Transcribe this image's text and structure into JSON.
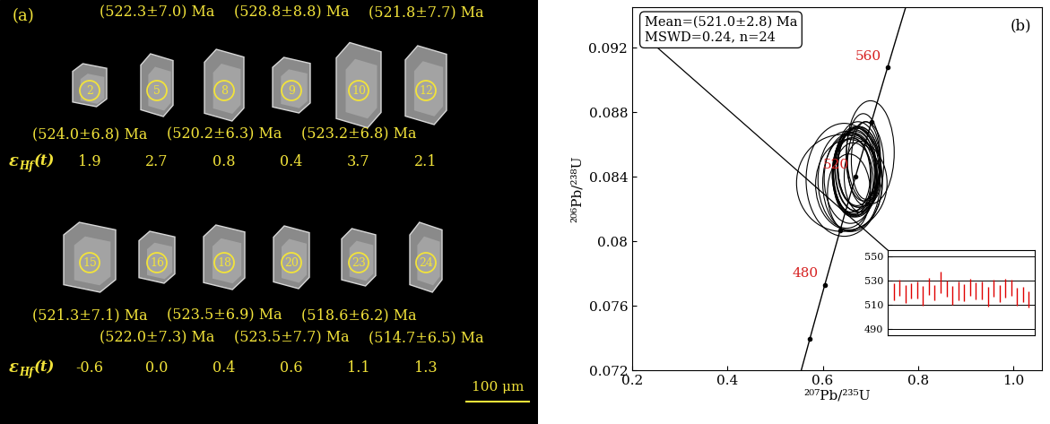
{
  "panel_a": {
    "label": "(a)",
    "ehf_label": {
      "symbol": "ε",
      "subscript": "Hf",
      "suffix": "(t)"
    },
    "scale_bar": "100 μm",
    "rows": [
      [
        {
          "spot": "2",
          "age": "(524.0±6.8) Ma",
          "ehf": 1.9
        },
        {
          "spot": "5",
          "age": "(522.3±7.0) Ma",
          "ehf": 2.7
        },
        {
          "spot": "8",
          "age": "(520.2±6.3) Ma",
          "ehf": 0.8
        },
        {
          "spot": "9",
          "age": "(528.8±8.8) Ma",
          "ehf": 0.4
        },
        {
          "spot": "10",
          "age": "(523.2±6.8) Ma",
          "ehf": 3.7
        },
        {
          "spot": "12",
          "age": "(521.8±7.7) Ma",
          "ehf": 2.1
        }
      ],
      [
        {
          "spot": "15",
          "age": "(521.3±7.1) Ma",
          "ehf": -0.6
        },
        {
          "spot": "16",
          "age": "(522.0±7.3) Ma",
          "ehf": 0.0
        },
        {
          "spot": "18",
          "age": "(523.5±6.9) Ma",
          "ehf": 0.4
        },
        {
          "spot": "20",
          "age": "(523.5±7.7) Ma",
          "ehf": 0.6
        },
        {
          "spot": "23",
          "age": "(518.6±6.2) Ma",
          "ehf": 1.1
        },
        {
          "spot": "24",
          "age": "(514.7±6.5) Ma",
          "ehf": 1.3
        }
      ]
    ]
  },
  "chart_data": {
    "type": "concordia",
    "panel_label": "(b)",
    "xlabel": "²⁰⁷Pb/²³⁵U",
    "ylabel": "²⁰⁶Pb/²³⁸U",
    "xlim": [
      0.2,
      1.06
    ],
    "ylim": [
      0.072,
      0.0945
    ],
    "xticks": [
      0.2,
      0.4,
      0.6,
      0.8,
      1.0
    ],
    "yticks": [
      0.072,
      0.076,
      0.08,
      0.084,
      0.088,
      0.092
    ],
    "summary": [
      "Mean=(521.0±2.8) Ma",
      "MSWD=0.24, n=24"
    ],
    "concordia_ages": [
      460,
      480,
      500,
      520,
      540,
      560
    ],
    "concordia_labels": [
      480,
      520,
      560
    ],
    "concordia_label_color": "#d62020",
    "ellipses": {
      "x": [
        0.665,
        0.672,
        0.65,
        0.68,
        0.668,
        0.64,
        0.69,
        0.66,
        0.7,
        0.675,
        0.655,
        0.67,
        0.662,
        0.685,
        0.668,
        0.671,
        0.645,
        0.676,
        0.658,
        0.674,
        0.69,
        0.66,
        0.664,
        0.655
      ],
      "y": [
        0.0842,
        0.0846,
        0.0838,
        0.084,
        0.0844,
        0.0836,
        0.0848,
        0.0841,
        0.0855,
        0.0846,
        0.0835,
        0.0843,
        0.084,
        0.0852,
        0.0842,
        0.0843,
        0.0838,
        0.0846,
        0.0839,
        0.0846,
        0.085,
        0.0836,
        0.0838,
        0.083
      ],
      "x_err": [
        0.045,
        0.04,
        0.06,
        0.035,
        0.042,
        0.095,
        0.038,
        0.04,
        0.05,
        0.045,
        0.07,
        0.048,
        0.04,
        0.036,
        0.045,
        0.05,
        0.08,
        0.044,
        0.055,
        0.048,
        0.03,
        0.06,
        0.042,
        0.045
      ],
      "y_err": [
        0.0025,
        0.0024,
        0.003,
        0.0022,
        0.0025,
        0.003,
        0.0026,
        0.0023,
        0.0032,
        0.0025,
        0.0028,
        0.0028,
        0.0024,
        0.0027,
        0.0026,
        0.0027,
        0.0035,
        0.0025,
        0.0028,
        0.0028,
        0.0024,
        0.003,
        0.0023,
        0.0024
      ]
    },
    "inset": {
      "type": "errorbar",
      "values": [
        520.5,
        524.0,
        519.0,
        521.5,
        522.3,
        517.5,
        525.0,
        520.2,
        528.8,
        523.2,
        518.0,
        521.8,
        520.0,
        524.5,
        521.3,
        522.0,
        516.5,
        523.5,
        519.5,
        523.5,
        524.0,
        517.0,
        518.6,
        514.7
      ],
      "errors": [
        7.0,
        6.8,
        7.5,
        6.5,
        7.0,
        8.0,
        7.2,
        6.3,
        8.8,
        6.8,
        7.6,
        7.7,
        6.9,
        7.1,
        7.1,
        7.3,
        8.2,
        6.9,
        7.0,
        7.7,
        6.6,
        7.4,
        6.2,
        6.5
      ],
      "color": "#e00000",
      "ylim": [
        485,
        555
      ],
      "yticks": [
        490,
        510,
        530,
        550
      ],
      "grid": true,
      "tick_labels": "y"
    }
  }
}
